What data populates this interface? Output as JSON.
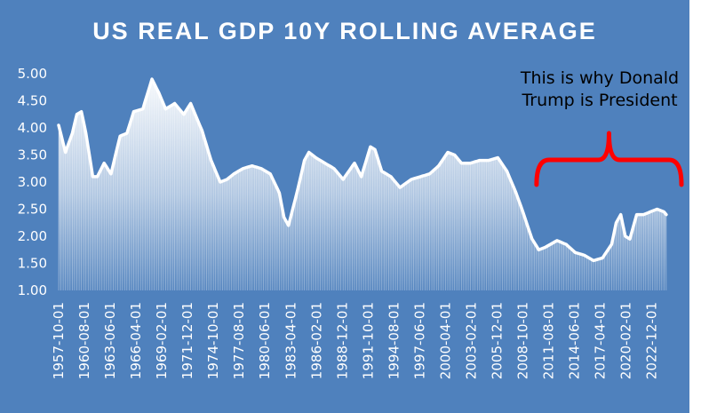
{
  "chart_data": {
    "type": "area",
    "title": "US REAL GDP 10Y ROLLING AVERAGE",
    "xlabel": "",
    "ylabel": "",
    "ylim": [
      1.0,
      5.0
    ],
    "y_ticks": [
      "1.00",
      "1.50",
      "2.00",
      "2.50",
      "3.00",
      "3.50",
      "4.00",
      "4.50",
      "5.00"
    ],
    "x_start": "1957-10-01",
    "x_step_quarters": 1,
    "x_tick_labels": [
      "1957-10-01",
      "1960-08-01",
      "1963-06-01",
      "1966-04-01",
      "1969-02-01",
      "1971-12-01",
      "1974-10-01",
      "1977-08-01",
      "1980-06-01",
      "1983-04-01",
      "1986-02-01",
      "1988-12-01",
      "1991-10-01",
      "1994-08-01",
      "1997-06-01",
      "2000-04-01",
      "2003-02-01",
      "2005-12-01",
      "2008-10-01",
      "2011-08-01",
      "2014-06-01",
      "2017-04-01",
      "2020-02-01",
      "2022-12-01"
    ],
    "series": [
      {
        "name": "US Real GDP 10Y rolling average",
        "anchors": [
          [
            "1957-10-01",
            4.05
          ],
          [
            "1958-07-01",
            3.55
          ],
          [
            "1959-04-01",
            3.9
          ],
          [
            "1959-10-01",
            4.25
          ],
          [
            "1960-04-01",
            4.3
          ],
          [
            "1960-10-01",
            3.9
          ],
          [
            "1961-07-01",
            3.1
          ],
          [
            "1962-01-01",
            3.1
          ],
          [
            "1962-10-01",
            3.35
          ],
          [
            "1963-07-01",
            3.15
          ],
          [
            "1964-07-01",
            3.85
          ],
          [
            "1965-04-01",
            3.9
          ],
          [
            "1966-01-01",
            4.3
          ],
          [
            "1967-01-01",
            4.35
          ],
          [
            "1968-01-01",
            4.9
          ],
          [
            "1968-10-01",
            4.65
          ],
          [
            "1969-07-01",
            4.35
          ],
          [
            "1970-07-01",
            4.45
          ],
          [
            "1971-07-01",
            4.25
          ],
          [
            "1972-04-01",
            4.45
          ],
          [
            "1973-07-01",
            3.95
          ],
          [
            "1974-07-01",
            3.4
          ],
          [
            "1975-07-01",
            3.0
          ],
          [
            "1976-04-01",
            3.05
          ],
          [
            "1977-01-01",
            3.15
          ],
          [
            "1978-01-01",
            3.25
          ],
          [
            "1979-01-01",
            3.3
          ],
          [
            "1980-01-01",
            3.25
          ],
          [
            "1981-01-01",
            3.15
          ],
          [
            "1982-01-01",
            2.8
          ],
          [
            "1982-07-01",
            2.35
          ],
          [
            "1983-01-01",
            2.2
          ],
          [
            "1984-01-01",
            2.85
          ],
          [
            "1984-10-01",
            3.4
          ],
          [
            "1985-04-01",
            3.55
          ],
          [
            "1986-01-01",
            3.45
          ],
          [
            "1987-01-01",
            3.35
          ],
          [
            "1988-01-01",
            3.25
          ],
          [
            "1989-01-01",
            3.05
          ],
          [
            "1990-04-01",
            3.35
          ],
          [
            "1991-01-01",
            3.1
          ],
          [
            "1992-01-01",
            3.65
          ],
          [
            "1992-07-01",
            3.6
          ],
          [
            "1993-04-01",
            3.2
          ],
          [
            "1994-04-01",
            3.1
          ],
          [
            "1995-04-01",
            2.9
          ],
          [
            "1996-07-01",
            3.05
          ],
          [
            "1997-07-01",
            3.1
          ],
          [
            "1998-07-01",
            3.15
          ],
          [
            "1999-07-01",
            3.3
          ],
          [
            "2000-07-01",
            3.55
          ],
          [
            "2001-04-01",
            3.5
          ],
          [
            "2002-01-01",
            3.35
          ],
          [
            "2003-01-01",
            3.35
          ],
          [
            "2004-01-01",
            3.4
          ],
          [
            "2005-01-01",
            3.4
          ],
          [
            "2006-01-01",
            3.45
          ],
          [
            "2007-01-01",
            3.2
          ],
          [
            "2008-01-01",
            2.8
          ],
          [
            "2008-10-01",
            2.45
          ],
          [
            "2009-10-01",
            1.95
          ],
          [
            "2010-07-01",
            1.75
          ],
          [
            "2011-04-01",
            1.8
          ],
          [
            "2012-07-01",
            1.92
          ],
          [
            "2013-07-01",
            1.85
          ],
          [
            "2014-07-01",
            1.7
          ],
          [
            "2015-07-01",
            1.65
          ],
          [
            "2016-07-01",
            1.55
          ],
          [
            "2017-07-01",
            1.6
          ],
          [
            "2018-07-01",
            1.85
          ],
          [
            "2019-01-01",
            2.25
          ],
          [
            "2019-07-01",
            2.4
          ],
          [
            "2020-01-01",
            2.0
          ],
          [
            "2020-07-01",
            1.95
          ],
          [
            "2021-04-01",
            2.4
          ],
          [
            "2022-01-01",
            2.4
          ],
          [
            "2022-10-01",
            2.45
          ],
          [
            "2023-07-01",
            2.5
          ],
          [
            "2024-04-01",
            2.45
          ],
          [
            "2024-07-01",
            2.4
          ]
        ]
      }
    ],
    "annotation": {
      "text_lines": [
        "This is why Donald",
        "Trump is President"
      ],
      "bracket_from": "2010-04-01",
      "bracket_to": "2025-01-01",
      "color": "#ff0000"
    },
    "colors": {
      "background": "#4f81bd",
      "line": "#ffffff",
      "fill": "#ffffff",
      "text": "#ffffff"
    }
  }
}
